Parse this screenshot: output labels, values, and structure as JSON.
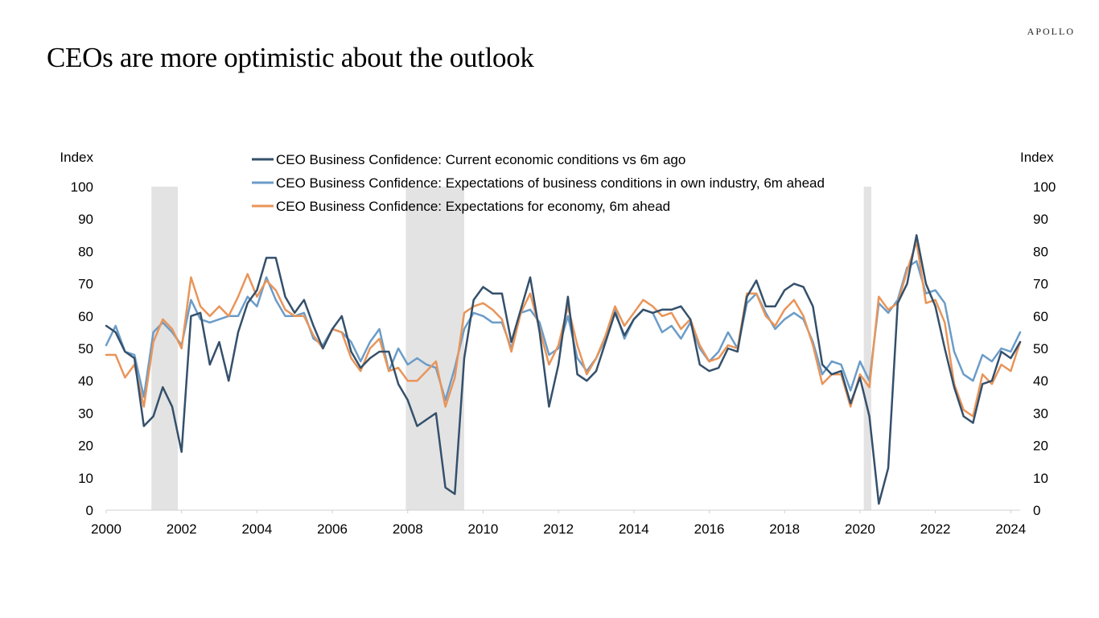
{
  "header": {
    "title": "CEOs are more optimistic about the outlook",
    "logo_text": "APOLLO"
  },
  "colors": {
    "current_conditions": "#34506b",
    "industry_expectations": "#6b9cc8",
    "economy_expectations": "#e8955a",
    "recession_shading": "#e3e3e3"
  },
  "chart_data": {
    "type": "line",
    "y_axis_label_left": "Index",
    "y_axis_label_right": "Index",
    "ylim": [
      0,
      100
    ],
    "y_ticks": [
      0,
      10,
      20,
      30,
      40,
      50,
      60,
      70,
      80,
      90,
      100
    ],
    "xlim": [
      2000,
      2024.25
    ],
    "x_ticks": [
      2000,
      2002,
      2004,
      2006,
      2008,
      2010,
      2012,
      2014,
      2016,
      2018,
      2020,
      2022,
      2024
    ],
    "legend_position": "top-center",
    "grid": false,
    "recessions": [
      [
        2001.2,
        2001.9
      ],
      [
        2007.95,
        2009.5
      ],
      [
        2020.1,
        2020.3
      ]
    ],
    "x": [
      2000.0,
      2000.25,
      2000.5,
      2000.75,
      2001.0,
      2001.25,
      2001.5,
      2001.75,
      2002.0,
      2002.25,
      2002.5,
      2002.75,
      2003.0,
      2003.25,
      2003.5,
      2003.75,
      2004.0,
      2004.25,
      2004.5,
      2004.75,
      2005.0,
      2005.25,
      2005.5,
      2005.75,
      2006.0,
      2006.25,
      2006.5,
      2006.75,
      2007.0,
      2007.25,
      2007.5,
      2007.75,
      2008.0,
      2008.25,
      2008.5,
      2008.75,
      2009.0,
      2009.25,
      2009.5,
      2009.75,
      2010.0,
      2010.25,
      2010.5,
      2010.75,
      2011.0,
      2011.25,
      2011.5,
      2011.75,
      2012.0,
      2012.25,
      2012.5,
      2012.75,
      2013.0,
      2013.25,
      2013.5,
      2013.75,
      2014.0,
      2014.25,
      2014.5,
      2014.75,
      2015.0,
      2015.25,
      2015.5,
      2015.75,
      2016.0,
      2016.25,
      2016.5,
      2016.75,
      2017.0,
      2017.25,
      2017.5,
      2017.75,
      2018.0,
      2018.25,
      2018.5,
      2018.75,
      2019.0,
      2019.25,
      2019.5,
      2019.75,
      2020.0,
      2020.25,
      2020.5,
      2020.75,
      2021.0,
      2021.25,
      2021.5,
      2021.75,
      2022.0,
      2022.25,
      2022.5,
      2022.75,
      2023.0,
      2023.25,
      2023.5,
      2023.75,
      2024.0,
      2024.25
    ],
    "series": [
      {
        "name": "CEO Business Confidence: Current economic conditions vs 6m ago",
        "color_key": "current_conditions",
        "values": [
          57,
          55,
          49,
          47,
          26,
          29,
          38,
          32,
          18,
          60,
          61,
          45,
          52,
          40,
          55,
          64,
          68,
          78,
          78,
          66,
          61,
          65,
          57,
          50,
          56,
          60,
          49,
          44,
          47,
          49,
          49,
          39,
          34,
          26,
          28,
          30,
          7,
          5,
          47,
          65,
          69,
          67,
          67,
          52,
          62,
          72,
          55,
          32,
          45,
          66,
          42,
          40,
          43,
          52,
          61,
          54,
          59,
          62,
          61,
          62,
          62,
          63,
          59,
          45,
          43,
          44,
          50,
          49,
          66,
          71,
          63,
          63,
          68,
          70,
          69,
          63,
          45,
          42,
          43,
          33,
          41,
          29,
          2,
          13,
          64,
          70,
          85,
          70,
          63,
          50,
          38,
          29,
          27,
          39,
          40,
          49,
          47,
          52
        ]
      },
      {
        "name": "CEO Business Confidence: Expectations of business conditions in own industry, 6m ahead",
        "color_key": "industry_expectations",
        "values": [
          51,
          57,
          49,
          48,
          35,
          55,
          58,
          55,
          51,
          65,
          59,
          58,
          59,
          60,
          60,
          66,
          63,
          72,
          65,
          60,
          60,
          61,
          53,
          51,
          56,
          55,
          52,
          46,
          52,
          56,
          43,
          50,
          45,
          47,
          45,
          44,
          34,
          44,
          56,
          61,
          60,
          58,
          58,
          50,
          61,
          62,
          58,
          48,
          50,
          60,
          47,
          43,
          47,
          53,
          62,
          53,
          59,
          62,
          61,
          55,
          57,
          53,
          58,
          50,
          46,
          49,
          55,
          50,
          64,
          67,
          61,
          56,
          59,
          61,
          59,
          52,
          42,
          46,
          45,
          37,
          46,
          40,
          64,
          61,
          65,
          75,
          77,
          67,
          68,
          64,
          49,
          42,
          40,
          48,
          46,
          50,
          49,
          55
        ]
      },
      {
        "name": "CEO Business Confidence: Expectations for economy, 6m ahead",
        "color_key": "economy_expectations",
        "values": [
          48,
          48,
          41,
          45,
          32,
          52,
          59,
          56,
          50,
          72,
          63,
          60,
          63,
          60,
          66,
          73,
          66,
          71,
          68,
          62,
          60,
          60,
          54,
          50,
          56,
          55,
          47,
          43,
          50,
          53,
          43,
          44,
          40,
          40,
          43,
          46,
          32,
          41,
          61,
          63,
          64,
          62,
          59,
          49,
          61,
          67,
          56,
          45,
          51,
          63,
          51,
          42,
          47,
          54,
          63,
          57,
          61,
          65,
          63,
          60,
          61,
          56,
          59,
          51,
          46,
          47,
          51,
          50,
          67,
          67,
          60,
          57,
          62,
          65,
          60,
          51,
          39,
          42,
          42,
          32,
          42,
          38,
          66,
          62,
          64,
          74,
          83,
          64,
          65,
          58,
          39,
          31,
          29,
          42,
          39,
          45,
          43,
          52
        ]
      }
    ]
  }
}
